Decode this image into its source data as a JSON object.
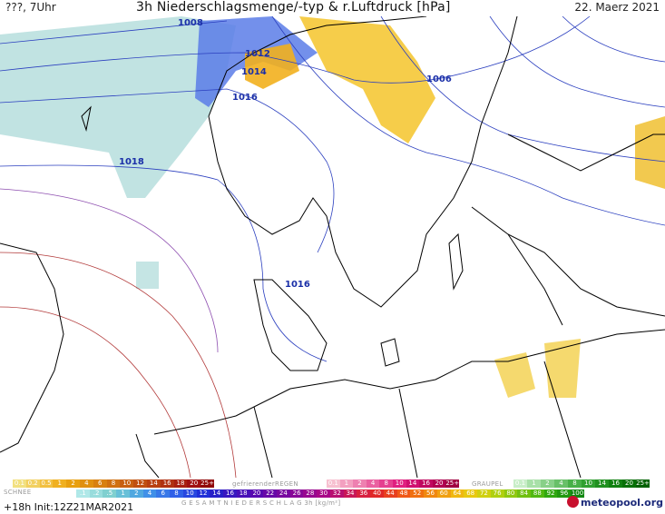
{
  "header": {
    "left": "???, 7Uhr",
    "title": "3h Niederschlagsmenge/-typ & r.Luftdruck [hPa]",
    "date": "22. Maerz 2021"
  },
  "isobars": [
    "1008",
    "1012",
    "1014",
    "1016",
    "1006",
    "1018",
    "1016"
  ],
  "legend": {
    "rain_scale": [
      "0.1",
      "0.2",
      "0.5",
      "1",
      "2",
      "4",
      "6",
      "8",
      "10",
      "12",
      "14",
      "16",
      "18",
      "20",
      "25+"
    ],
    "freezing_rain_label": "gefrierenderREGEN",
    "freezing_rain_scale": [
      "0.1",
      "1",
      "2",
      "4",
      "8",
      "10",
      "14",
      "16",
      "20",
      "25+"
    ],
    "graupel_label": "GRAUPEL",
    "graupel_scale": [
      "0.1",
      "1",
      "2",
      "4",
      "8",
      "10",
      "14",
      "16",
      "20",
      "25+"
    ],
    "snow_label": "SCHNEE",
    "snow_scale": [
      ".1",
      ".2",
      ".5",
      "1",
      "2",
      "4",
      "6",
      "8",
      "10",
      "12",
      "14",
      "16",
      "18",
      "20",
      "22",
      "24",
      "26",
      "28",
      "30",
      "32",
      "34",
      "36",
      "40",
      "44",
      "48",
      "52",
      "56",
      "60",
      "64",
      "68",
      "72",
      "76",
      "80",
      "84",
      "88",
      "92",
      "96",
      "100"
    ],
    "total_label": "G E S A M T N I E D E R S C H L A G   3h   [kg/m²]",
    "run_info": "+18h  Init:12Z21MAR2021",
    "brand": "meteopool.org"
  },
  "colors": {
    "sea": "#ffffff",
    "land_outline": "#000000",
    "isobar": "#2b3fbf",
    "high_isobar": "#b03030",
    "rain_light": "#a8d8d8",
    "rain_yellow": "#f0c020",
    "snow_blue": "#4a6ee0"
  }
}
